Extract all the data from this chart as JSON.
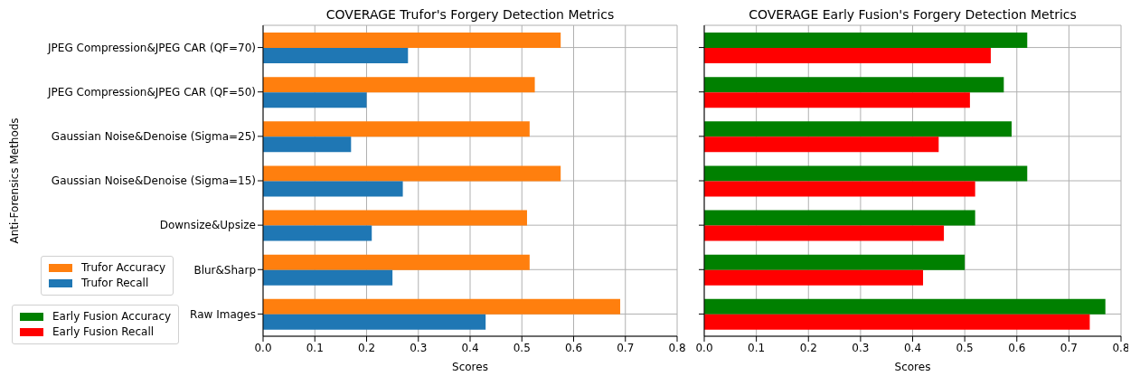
{
  "chart_data": [
    {
      "type": "bar",
      "orientation": "horizontal",
      "title": "COVERAGE Trufor's Forgery Detection Metrics",
      "xlabel": "Scores",
      "ylabel": "Anti-Forensics Methods",
      "categories": [
        "JPEG Compression&JPEG CAR (QF=70)",
        "JPEG Compression&JPEG CAR (QF=50)",
        "Gaussian Noise&Denoise (Sigma=25)",
        "Gaussian Noise&Denoise (Sigma=15)",
        "Downsize&Upsize",
        "Blur&Sharp",
        "Raw Images"
      ],
      "series": [
        {
          "name": "Trufor Accuracy",
          "color": "#ff7f0e",
          "values": [
            0.575,
            0.525,
            0.515,
            0.575,
            0.51,
            0.515,
            0.69
          ]
        },
        {
          "name": "Trufor Recall",
          "color": "#1f77b4",
          "values": [
            0.28,
            0.2,
            0.17,
            0.27,
            0.21,
            0.25,
            0.43
          ]
        }
      ],
      "xlim": [
        0,
        0.8
      ],
      "xticks": [
        {
          "value": 0,
          "label": "0.0"
        },
        0.1,
        0.2,
        0.3,
        0.4,
        0.5,
        0.6,
        0.7,
        0.8
      ],
      "grid": true,
      "legend": "bottom left"
    },
    {
      "type": "bar",
      "orientation": "horizontal",
      "title": "COVERAGE Early Fusion's Forgery Detection Metrics",
      "xlabel": "Scores",
      "categories": [
        null,
        null,
        null,
        null,
        null,
        null,
        null
      ],
      "series": [
        {
          "name": "Early Fusion Accuracy",
          "color": "#008000",
          "values": [
            0.62,
            0.575,
            0.59,
            0.62,
            0.52,
            0.5,
            0.77
          ]
        },
        {
          "name": "Early Fusion Recall",
          "color": "#ff0000",
          "values": [
            0.55,
            0.51,
            0.45,
            0.52,
            0.46,
            0.42,
            0.74
          ]
        }
      ],
      "xlim": [
        0,
        0.8
      ],
      "xticks": [
        {
          "value": 0,
          "label": "0.0"
        },
        0.1,
        0.2,
        0.3,
        0.4,
        0.5,
        0.6,
        0.7,
        0.8
      ],
      "grid": true,
      "legend": "bottom left"
    }
  ]
}
